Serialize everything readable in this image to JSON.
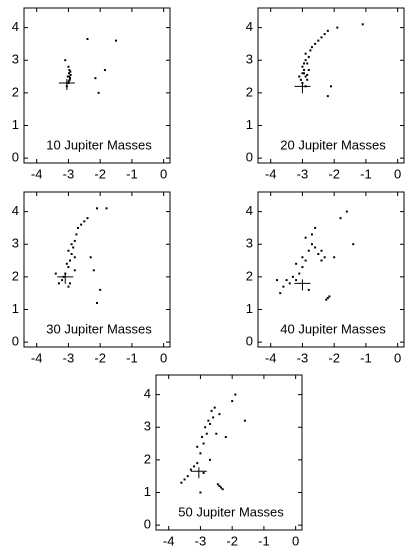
{
  "chart_data": [
    {
      "type": "scatter",
      "annotation": "10 Jupiter Masses",
      "xlim": [
        -4.4,
        0.2
      ],
      "ylim": [
        -0.15,
        4.6
      ],
      "xticks": [
        -4,
        -3,
        -2,
        -1,
        0
      ],
      "yticks": [
        0,
        1,
        2,
        3,
        4
      ],
      "series": [
        {
          "color": "#000000",
          "x": [
            -3.0,
            -2.95,
            -2.98,
            -3.02,
            -2.97,
            -2.93,
            -3.0,
            -2.96,
            -3.1,
            -2.4,
            -2.15,
            -1.85,
            -2.05,
            -3.05,
            -2.99,
            -2.94,
            -2.97,
            -1.5
          ],
          "values": [
            2.3,
            2.45,
            2.6,
            2.5,
            2.7,
            2.55,
            2.8,
            2.4,
            3.0,
            3.65,
            2.45,
            2.7,
            2.0,
            2.2,
            2.35,
            2.65,
            2.5,
            3.6
          ]
        },
        {
          "color": "#000000",
          "marker": "plus",
          "x": [
            -3.05
          ],
          "values": [
            2.3
          ]
        }
      ]
    },
    {
      "type": "scatter",
      "annotation": "20 Jupiter Masses",
      "xlim": [
        -4.4,
        0.2
      ],
      "ylim": [
        -0.15,
        4.6
      ],
      "xticks": [
        -4,
        -3,
        -2,
        -1,
        0
      ],
      "yticks": [
        0,
        1,
        2,
        3,
        4
      ],
      "series": [
        {
          "color": "#000000",
          "x": [
            -3.0,
            -2.9,
            -2.95,
            -3.05,
            -2.85,
            -2.8,
            -2.9,
            -3.0,
            -2.75,
            -2.95,
            -2.85,
            -3.1,
            -2.9,
            -2.8,
            -2.7,
            -2.6,
            -2.5,
            -2.4,
            -2.3,
            -2.2,
            -1.9,
            -1.1,
            -2.9,
            -3.0,
            -2.85,
            -2.95,
            -2.1,
            -2.2
          ],
          "values": [
            2.3,
            2.5,
            2.7,
            2.4,
            2.9,
            3.1,
            3.2,
            2.8,
            3.3,
            2.6,
            2.4,
            2.5,
            3.0,
            2.7,
            3.4,
            3.5,
            3.6,
            3.7,
            3.8,
            3.9,
            4.0,
            4.1,
            2.2,
            2.6,
            2.55,
            2.9,
            2.2,
            1.9
          ]
        },
        {
          "color": "#000000",
          "marker": "plus",
          "x": [
            -3.0
          ],
          "values": [
            2.2
          ]
        }
      ]
    },
    {
      "type": "scatter",
      "annotation": "30 Jupiter Masses",
      "xlim": [
        -4.4,
        0.2
      ],
      "ylim": [
        -0.15,
        4.6
      ],
      "xticks": [
        -4,
        -3,
        -2,
        -1,
        0
      ],
      "yticks": [
        0,
        1,
        2,
        3,
        4
      ],
      "series": [
        {
          "color": "#000000",
          "x": [
            -3.1,
            -3.0,
            -2.95,
            -2.9,
            -2.85,
            -2.8,
            -2.75,
            -2.7,
            -3.05,
            -3.15,
            -3.2,
            -3.0,
            -2.9,
            -2.8,
            -2.6,
            -2.5,
            -2.4,
            -2.3,
            -2.2,
            -2.1,
            -3.3,
            -3.4,
            -2.95,
            -2.0,
            -2.1,
            -1.8,
            -2.8,
            -3.0
          ],
          "values": [
            2.1,
            2.3,
            2.5,
            2.7,
            2.9,
            3.1,
            3.3,
            3.5,
            2.4,
            2.0,
            1.9,
            2.8,
            3.0,
            2.6,
            3.6,
            3.7,
            3.8,
            2.6,
            2.2,
            1.2,
            1.8,
            2.1,
            1.8,
            1.6,
            4.1,
            4.1,
            2.2,
            1.7
          ]
        },
        {
          "color": "#000000",
          "marker": "plus",
          "x": [
            -3.1
          ],
          "values": [
            2.0
          ]
        }
      ]
    },
    {
      "type": "scatter",
      "annotation": "40 Jupiter Masses",
      "xlim": [
        -4.4,
        0.2
      ],
      "ylim": [
        -0.15,
        4.6
      ],
      "xticks": [
        -4,
        -3,
        -2,
        -1,
        0
      ],
      "yticks": [
        0,
        1,
        2,
        3,
        4
      ],
      "series": [
        {
          "color": "#000000",
          "x": [
            -3.2,
            -3.1,
            -3.0,
            -2.9,
            -2.8,
            -2.7,
            -3.3,
            -3.4,
            -3.5,
            -3.6,
            -2.9,
            -2.7,
            -2.6,
            -2.5,
            -2.4,
            -2.3,
            -2.2,
            -2.25,
            -2.15,
            -2.0,
            -1.8,
            -1.6,
            -1.4,
            -3.7,
            -3.8,
            -3.2,
            -3.0,
            -2.6,
            -2.8,
            -2.4
          ],
          "values": [
            1.9,
            2.1,
            2.3,
            2.5,
            2.8,
            3.0,
            2.0,
            1.8,
            1.9,
            1.7,
            3.2,
            3.3,
            2.9,
            2.7,
            2.8,
            2.6,
            1.35,
            1.3,
            1.4,
            2.6,
            3.8,
            4.0,
            3.0,
            1.5,
            1.9,
            2.4,
            2.6,
            3.5,
            1.6,
            2.5
          ]
        },
        {
          "color": "#000000",
          "marker": "plus",
          "x": [
            -3.0
          ],
          "values": [
            1.8
          ]
        }
      ]
    },
    {
      "type": "scatter",
      "annotation": "50 Jupiter Masses",
      "xlim": [
        -4.4,
        0.2
      ],
      "ylim": [
        -0.15,
        4.6
      ],
      "xticks": [
        -4,
        -3,
        -2,
        -1,
        0
      ],
      "yticks": [
        0,
        1,
        2,
        3,
        4
      ],
      "series": [
        {
          "color": "#000000",
          "x": [
            -3.1,
            -3.0,
            -2.9,
            -2.8,
            -2.7,
            -2.6,
            -3.2,
            -3.3,
            -3.4,
            -3.5,
            -2.95,
            -2.85,
            -2.75,
            -2.65,
            -2.55,
            -2.4,
            -2.35,
            -2.3,
            -2.45,
            -2.2,
            -2.0,
            -1.9,
            -1.6,
            -3.6,
            -3.0,
            -2.9,
            -3.1,
            -2.5,
            -2.7,
            -2.4
          ],
          "values": [
            1.9,
            2.2,
            2.5,
            2.8,
            3.1,
            3.3,
            1.8,
            1.7,
            1.5,
            1.4,
            2.7,
            3.0,
            3.2,
            3.5,
            3.6,
            1.2,
            1.15,
            1.1,
            1.25,
            2.7,
            3.8,
            4.0,
            3.2,
            1.3,
            1.0,
            1.6,
            2.4,
            2.8,
            2.0,
            3.4
          ]
        },
        {
          "color": "#000000",
          "marker": "plus",
          "x": [
            -3.05
          ],
          "values": [
            1.65
          ]
        }
      ]
    }
  ]
}
